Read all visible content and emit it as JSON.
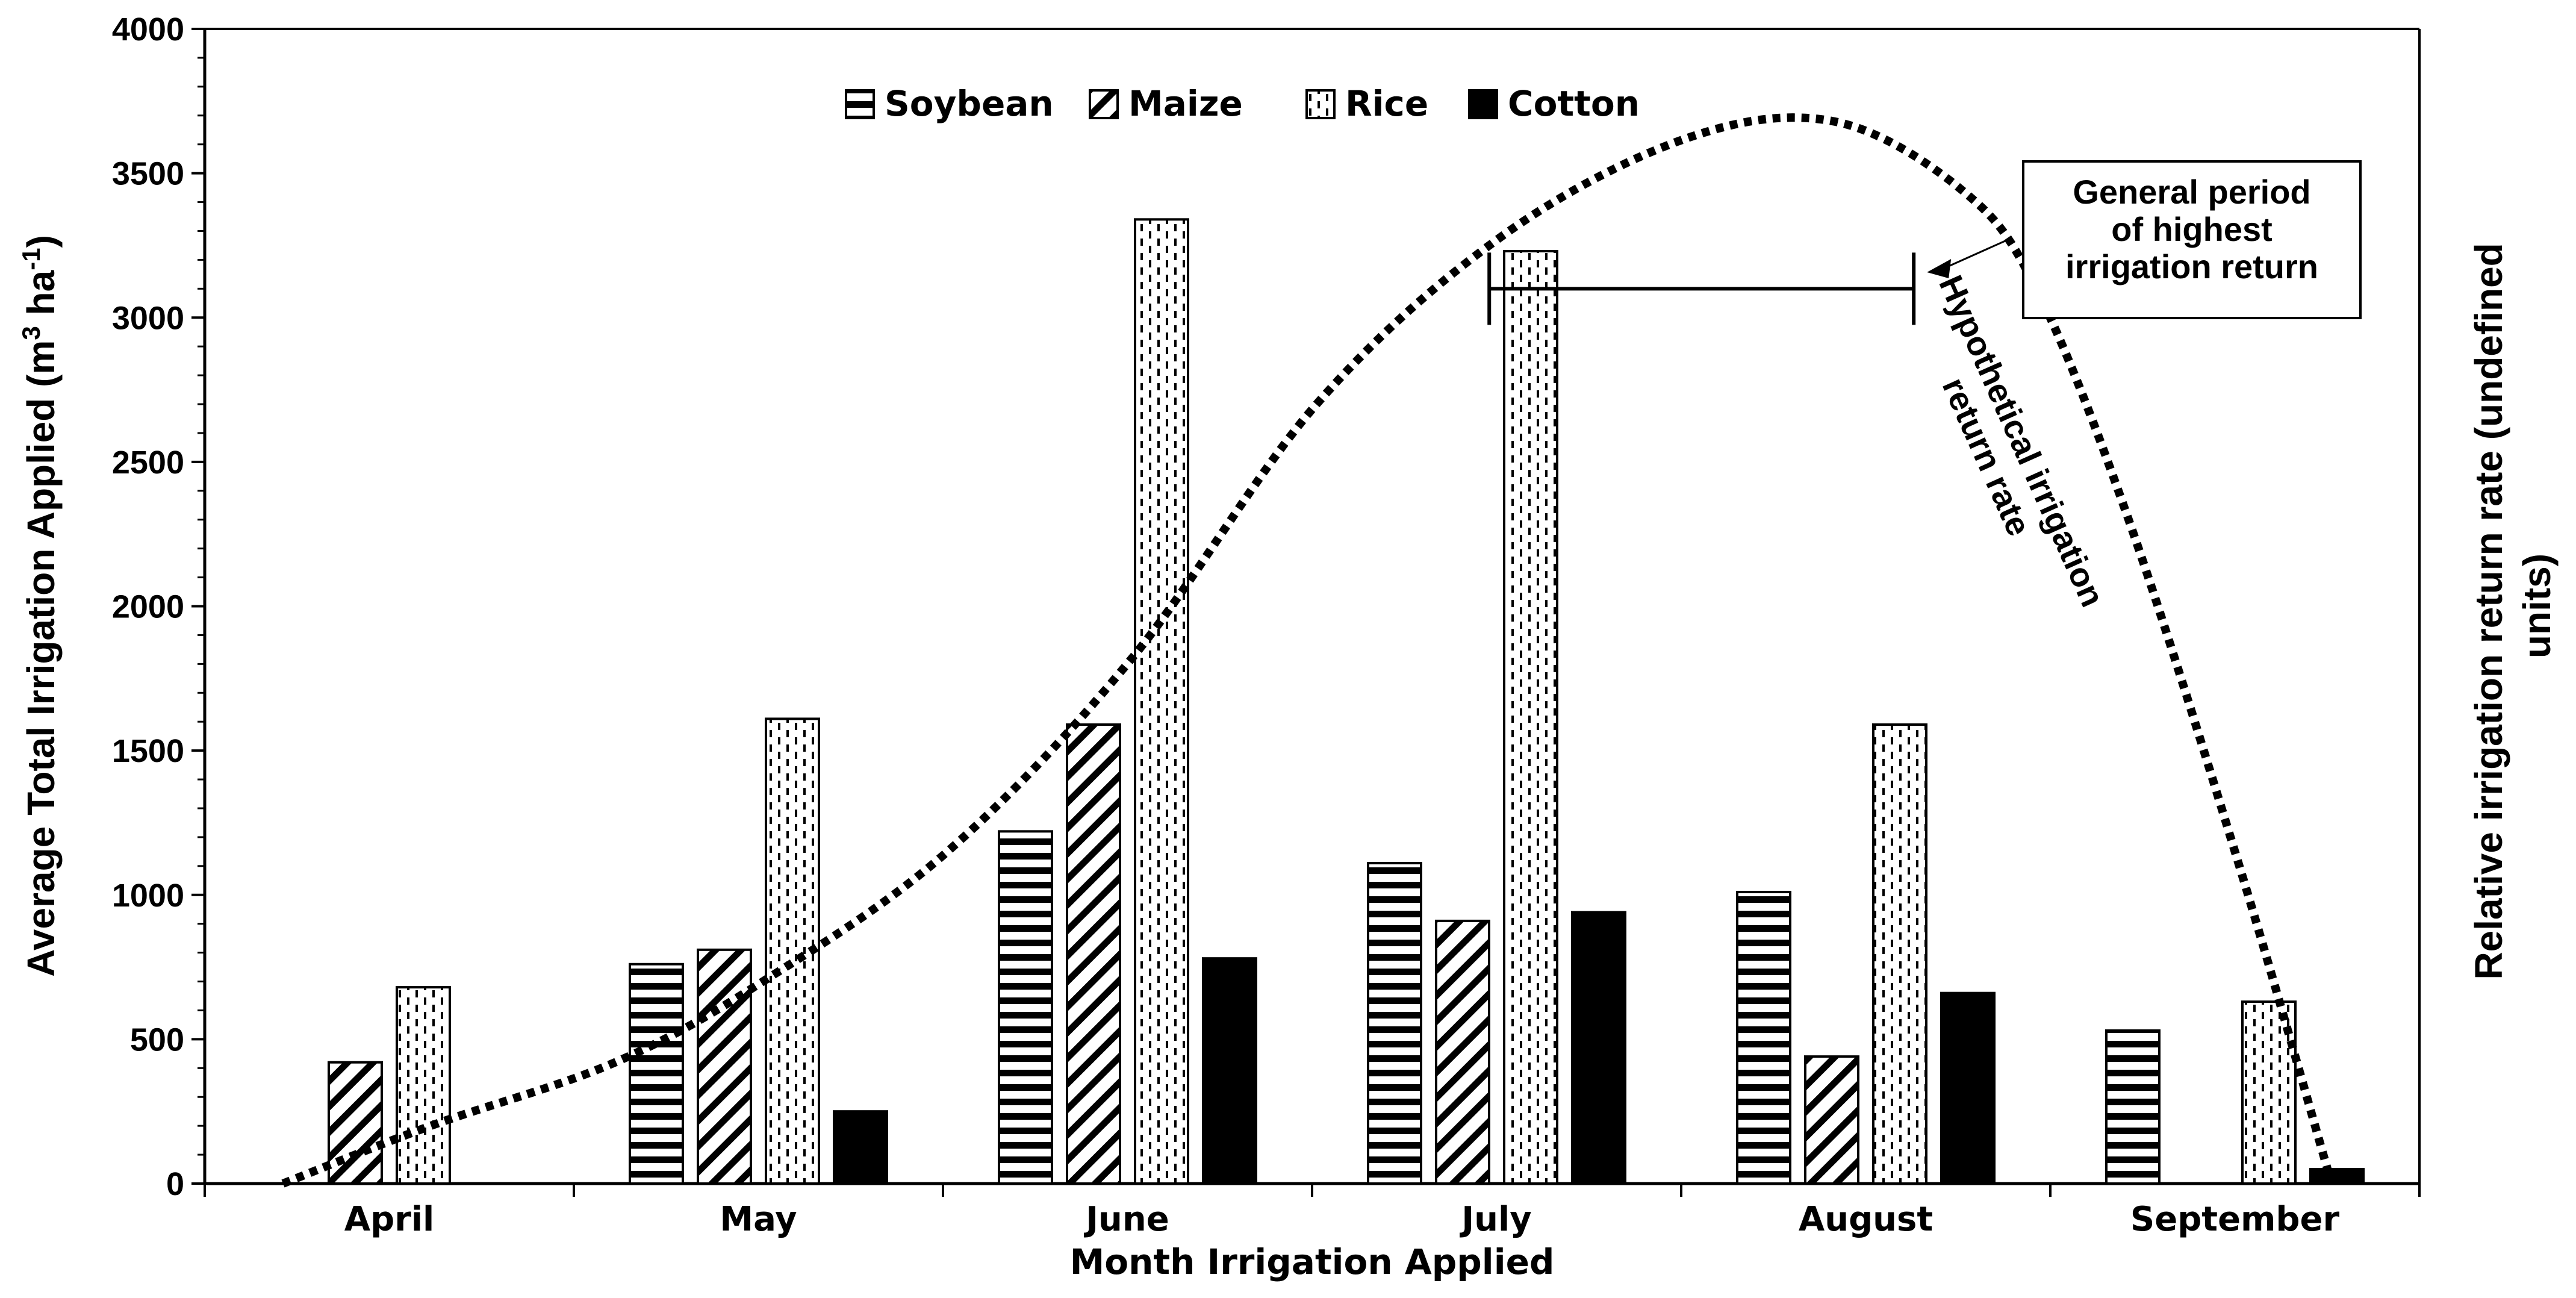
{
  "chart_data": {
    "type": "bar",
    "title": "",
    "xlabel": "Month Irrigation Applied",
    "ylabel": "Average Total Irrigation Applied (m³ ha⁻¹)",
    "ylabel_parts": {
      "main": "Average Total Irrigation Applied (m",
      "sup1": "3",
      "mid": " ha",
      "sup2": "-1",
      "end": ")"
    },
    "y2label_line1": "Relative irrigation return rate (undefined",
    "y2label_line2": "units)",
    "ylim": [
      0,
      4000
    ],
    "yticks": [
      0,
      500,
      1000,
      1500,
      2000,
      2500,
      3000,
      3500,
      4000
    ],
    "grid": false,
    "legend_position": "top-center",
    "categories": [
      "April",
      "May",
      "June",
      "July",
      "August",
      "September"
    ],
    "series": [
      {
        "name": "Soybean",
        "pattern": "horizontal-lines",
        "values": [
          0,
          760,
          1220,
          1110,
          1010,
          530
        ]
      },
      {
        "name": "Maize",
        "pattern": "diagonal-hatch",
        "values": [
          420,
          810,
          1590,
          910,
          440,
          0
        ]
      },
      {
        "name": "Rice",
        "pattern": "dotted-vertical",
        "values": [
          680,
          1610,
          3340,
          3230,
          1590,
          630
        ]
      },
      {
        "name": "Cotton",
        "pattern": "solid-black",
        "values": [
          0,
          250,
          780,
          940,
          660,
          50
        ]
      }
    ],
    "curve": {
      "name": "Hypothetical irrigation return rate",
      "style": "dotted",
      "points": [
        [
          0.0,
          0
        ],
        [
          0.4,
          200
        ],
        [
          0.9,
          420
        ],
        [
          1.3,
          700
        ],
        [
          1.8,
          1150
        ],
        [
          2.3,
          1820
        ],
        [
          2.8,
          2700
        ],
        [
          3.3,
          3280
        ],
        [
          3.8,
          3620
        ],
        [
          4.2,
          3680
        ],
        [
          4.55,
          3440
        ],
        [
          4.75,
          3100
        ],
        [
          5.0,
          2300
        ],
        [
          5.3,
          1100
        ],
        [
          5.55,
          0
        ]
      ],
      "label_line1": "Hypothetical irrigation",
      "label_line2": "return rate"
    },
    "annotation": {
      "text_lines": [
        "General period",
        "of highest",
        "irrigation return"
      ],
      "bracket_from": 3.48,
      "bracket_to": 4.63,
      "bracket_value": 3100
    }
  }
}
